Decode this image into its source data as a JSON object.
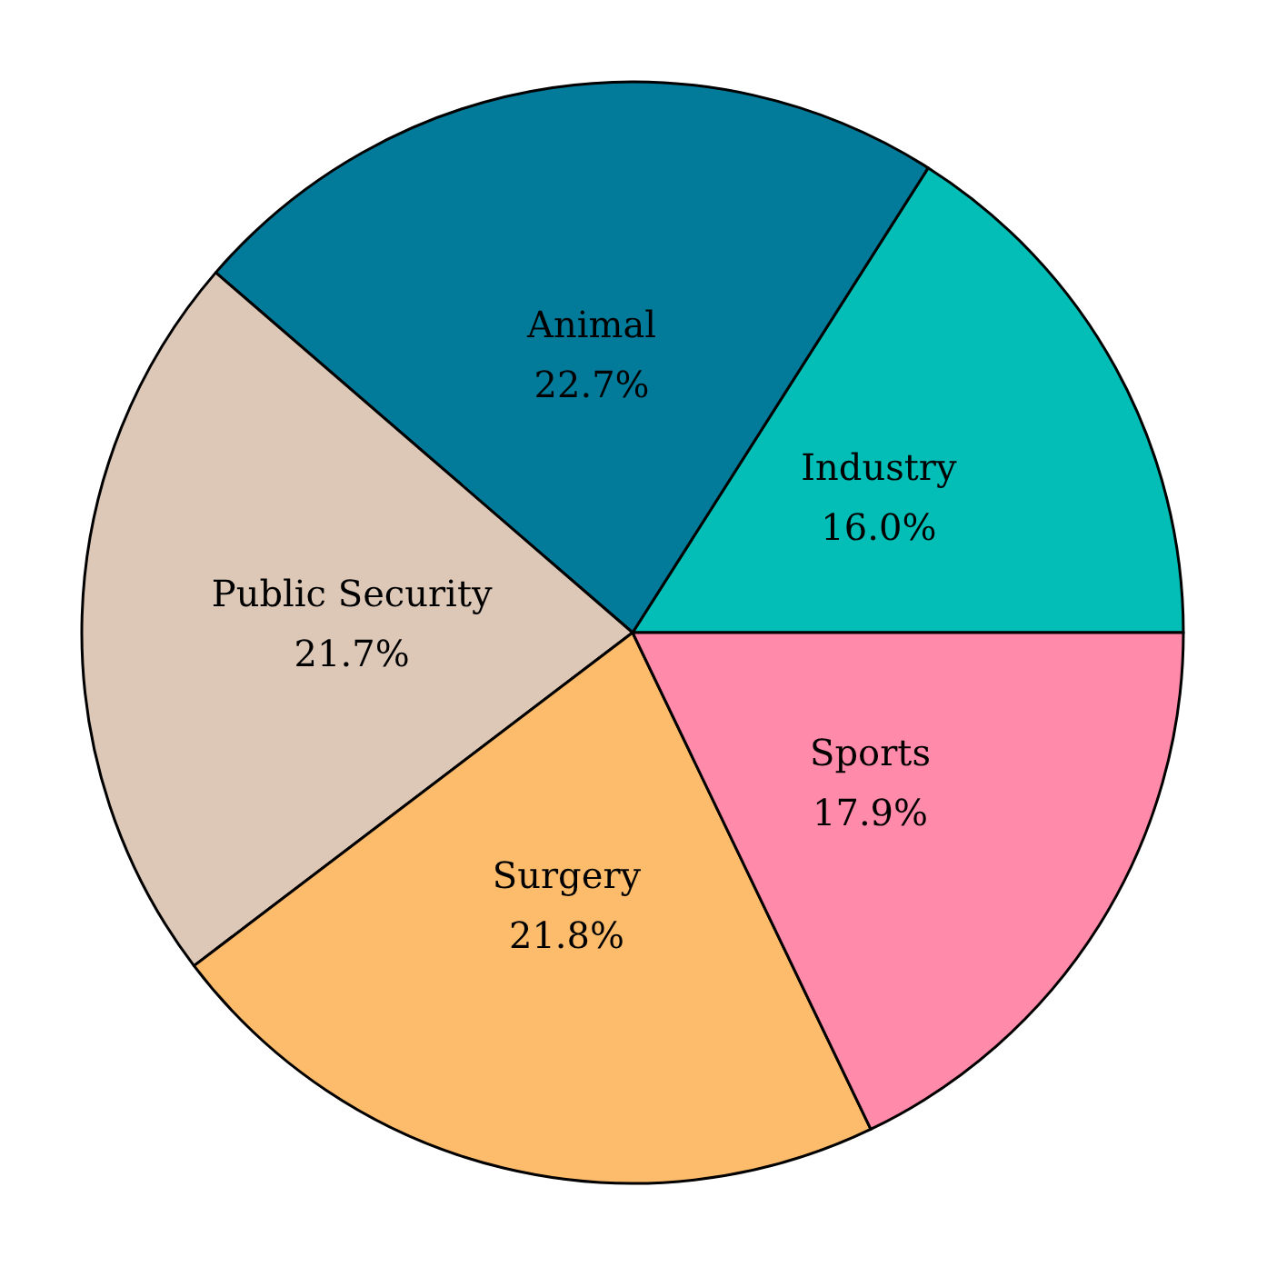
{
  "chart_data": {
    "type": "pie",
    "categories": [
      "Industry",
      "Animal",
      "Public Security",
      "Surgery",
      "Sports"
    ],
    "values": [
      16.0,
      22.7,
      21.7,
      21.8,
      17.9
    ],
    "value_labels": [
      "16.0%",
      "22.7%",
      "21.7%",
      "21.8%",
      "17.9%"
    ],
    "colors": [
      "#02beb7",
      "#027b9a",
      "#ddc8b8",
      "#fdbc6c",
      "#ff8aaa"
    ]
  }
}
